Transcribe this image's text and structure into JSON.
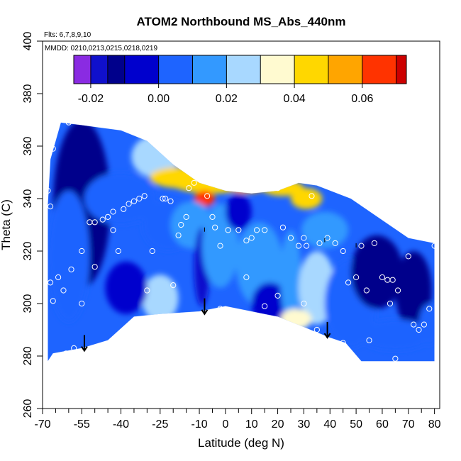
{
  "chart_data": {
    "type": "heatmap",
    "title": "ATOM2 Northbound MS_Abs_440nm",
    "subtitle_flights": "Flts: 6,7,8,9,10",
    "subtitle_dates": "MMDD: 0210,0213,0215,0218,0219",
    "xlabel": "Latitude (deg N)",
    "ylabel": "Theta (C)",
    "xlim": [
      -70,
      82
    ],
    "ylim": [
      260,
      400
    ],
    "x_ticks_major": [
      -70,
      -55,
      -40,
      -25,
      -10,
      0,
      10,
      20,
      30,
      40,
      50,
      60,
      70,
      80
    ],
    "x_tick_labels": [
      "-70",
      "-55",
      "-40",
      "-25",
      "-10",
      "0",
      "10",
      "20",
      "30",
      "40",
      "50",
      "60",
      "70",
      "80"
    ],
    "x_ticks_minor": [
      -65,
      -60,
      -50,
      -45,
      -35,
      -30,
      -20,
      -15,
      -5,
      5,
      15,
      25,
      35,
      45,
      55,
      65,
      75
    ],
    "y_ticks": [
      260,
      280,
      300,
      320,
      340,
      360,
      380,
      400
    ],
    "y_tick_labels": [
      "260",
      "280",
      "300",
      "320",
      "340",
      "360",
      "380",
      "400"
    ],
    "colorbar": {
      "range": [
        -0.025,
        0.073
      ],
      "tick_values": [
        -0.02,
        0.0,
        0.02,
        0.04,
        0.06
      ],
      "tick_labels": [
        "-0.02",
        "0.00",
        "0.02",
        "0.04",
        "0.06"
      ],
      "boundaries": [
        -0.025,
        -0.02,
        -0.015,
        -0.01,
        0.0,
        0.01,
        0.02,
        0.03,
        0.04,
        0.05,
        0.06,
        0.07,
        0.073
      ],
      "colors": [
        "#8a2be2",
        "#1010cc",
        "#00008b",
        "#0000cd",
        "#1e64ff",
        "#3399ff",
        "#a8d8ff",
        "#fffad0",
        "#ffd700",
        "#ffa500",
        "#ff3300",
        "#cc0000",
        "#a52a2a"
      ]
    },
    "boundary_bottom": [
      [
        -68,
        278
      ],
      [
        -66,
        281
      ],
      [
        -55,
        283
      ],
      [
        -45,
        286
      ],
      [
        -35,
        295
      ],
      [
        -25,
        296
      ],
      [
        -10,
        297
      ],
      [
        0,
        299
      ],
      [
        10,
        297
      ],
      [
        20,
        295
      ],
      [
        30,
        291
      ],
      [
        40,
        287
      ],
      [
        46,
        285
      ],
      [
        52,
        278
      ],
      [
        80,
        278
      ]
    ],
    "boundary_top": [
      [
        -68,
        338
      ],
      [
        -67,
        355
      ],
      [
        -63,
        369
      ],
      [
        -55,
        368
      ],
      [
        -40,
        366
      ],
      [
        -30,
        362
      ],
      [
        -20,
        353
      ],
      [
        -10,
        346
      ],
      [
        0,
        343
      ],
      [
        10,
        342
      ],
      [
        20,
        343
      ],
      [
        28,
        346
      ],
      [
        35,
        345
      ],
      [
        48,
        340
      ],
      [
        70,
        325
      ],
      [
        80,
        323
      ]
    ],
    "field_blobs": [
      {
        "x": -27,
        "y": 356,
        "rx": 9,
        "ry": 8,
        "v": 0.022
      },
      {
        "x": -17,
        "y": 348,
        "rx": 12,
        "ry": 4,
        "v": 0.045
      },
      {
        "x": -5,
        "y": 346,
        "rx": 16,
        "ry": 4,
        "v": 0.042
      },
      {
        "x": -8,
        "y": 340,
        "rx": 4,
        "ry": 3,
        "v": 0.068
      },
      {
        "x": 8,
        "y": 345,
        "rx": 8,
        "ry": 3,
        "v": 0.05
      },
      {
        "x": 22,
        "y": 344,
        "rx": 8,
        "ry": 3,
        "v": 0.04
      },
      {
        "x": 31,
        "y": 340,
        "rx": 6,
        "ry": 4,
        "v": 0.045
      },
      {
        "x": -55,
        "y": 338,
        "rx": 11,
        "ry": 32,
        "v": -0.012
      },
      {
        "x": -40,
        "y": 340,
        "rx": 14,
        "ry": 10,
        "v": 0.003
      },
      {
        "x": -60,
        "y": 318,
        "rx": 8,
        "ry": 25,
        "v": 0.006
      },
      {
        "x": -22,
        "y": 330,
        "rx": 10,
        "ry": 10,
        "v": 0.008
      },
      {
        "x": -25,
        "y": 302,
        "rx": 7,
        "ry": 9,
        "v": 0.025
      },
      {
        "x": -38,
        "y": 306,
        "rx": 8,
        "ry": 10,
        "v": -0.01
      },
      {
        "x": -13,
        "y": 330,
        "rx": 8,
        "ry": 9,
        "v": 0.013
      },
      {
        "x": -9,
        "y": 314,
        "rx": 3,
        "ry": 15,
        "v": -0.017
      },
      {
        "x": -2,
        "y": 322,
        "rx": 7,
        "ry": 16,
        "v": 0.014
      },
      {
        "x": 5,
        "y": 335,
        "rx": 5,
        "ry": 7,
        "v": -0.008
      },
      {
        "x": 13,
        "y": 315,
        "rx": 9,
        "ry": 16,
        "v": 0.01
      },
      {
        "x": 17,
        "y": 300,
        "rx": 7,
        "ry": 8,
        "v": -0.01
      },
      {
        "x": 25,
        "y": 310,
        "rx": 4,
        "ry": 18,
        "v": 0.016
      },
      {
        "x": 35,
        "y": 306,
        "rx": 7,
        "ry": 14,
        "v": 0.027
      },
      {
        "x": 27,
        "y": 294,
        "rx": 6,
        "ry": 4,
        "v": 0.032
      },
      {
        "x": 38,
        "y": 328,
        "rx": 9,
        "ry": 7,
        "v": 0.012
      },
      {
        "x": 48,
        "y": 300,
        "rx": 10,
        "ry": 17,
        "v": 0.008
      },
      {
        "x": 58,
        "y": 312,
        "rx": 10,
        "ry": 14,
        "v": -0.012
      },
      {
        "x": 72,
        "y": 305,
        "rx": 7,
        "ry": 15,
        "v": -0.015
      },
      {
        "x": 65,
        "y": 288,
        "rx": 14,
        "ry": 6,
        "v": 0.004
      },
      {
        "x": 78,
        "y": 292,
        "rx": 4,
        "ry": 8,
        "v": 0.008
      }
    ],
    "background_value": 0.0,
    "observation_points": [
      [
        -66,
        369
      ],
      [
        -68,
        343
      ],
      [
        -67,
        337
      ],
      [
        -66,
        359
      ],
      [
        -60,
        369
      ],
      [
        -67,
        308
      ],
      [
        -66,
        301
      ],
      [
        -64,
        310
      ],
      [
        -62,
        305
      ],
      [
        -59,
        313
      ],
      [
        -61,
        281
      ],
      [
        -58,
        283
      ],
      [
        -55,
        320
      ],
      [
        -50,
        314
      ],
      [
        -52,
        331
      ],
      [
        -50,
        331
      ],
      [
        -47,
        332
      ],
      [
        -45,
        333
      ],
      [
        -43,
        335
      ],
      [
        -43,
        328
      ],
      [
        -41,
        320
      ],
      [
        -39,
        336
      ],
      [
        -37,
        338
      ],
      [
        -35,
        339
      ],
      [
        -33,
        340
      ],
      [
        -31,
        341
      ],
      [
        -28,
        320
      ],
      [
        -24,
        340
      ],
      [
        -23,
        340
      ],
      [
        -21,
        339
      ],
      [
        -18,
        326
      ],
      [
        -17,
        330
      ],
      [
        -14,
        344
      ],
      [
        -12,
        346
      ],
      [
        -7,
        341
      ],
      [
        -4,
        329
      ],
      [
        -5,
        333
      ],
      [
        -2,
        322
      ],
      [
        1,
        328
      ],
      [
        2,
        344
      ],
      [
        5,
        328
      ],
      [
        8,
        324
      ],
      [
        10,
        325
      ],
      [
        12,
        328
      ],
      [
        13,
        344
      ],
      [
        15,
        328
      ],
      [
        18,
        344
      ],
      [
        20,
        344
      ],
      [
        22,
        329
      ],
      [
        25,
        325
      ],
      [
        28,
        322
      ],
      [
        30,
        325
      ],
      [
        31,
        322
      ],
      [
        33,
        341
      ],
      [
        36,
        323
      ],
      [
        39,
        325
      ],
      [
        42,
        323
      ],
      [
        45,
        320
      ],
      [
        50,
        310
      ],
      [
        52,
        322
      ],
      [
        54,
        305
      ],
      [
        57,
        323
      ],
      [
        60,
        310
      ],
      [
        62,
        309
      ],
      [
        64,
        309
      ],
      [
        66,
        305
      ],
      [
        63,
        300
      ],
      [
        70,
        318
      ],
      [
        72,
        292
      ],
      [
        74,
        290
      ],
      [
        76,
        292
      ],
      [
        78,
        298
      ],
      [
        80,
        322
      ],
      [
        -15,
        333
      ],
      [
        -2,
        298
      ],
      [
        15,
        299
      ],
      [
        35,
        290
      ],
      [
        45,
        285
      ],
      [
        55,
        286
      ],
      [
        65,
        279
      ],
      [
        47,
        308
      ],
      [
        30,
        300
      ],
      [
        20,
        303
      ],
      [
        8,
        310
      ],
      [
        -20,
        307
      ],
      [
        -30,
        305
      ],
      [
        -55,
        300
      ]
    ],
    "arrows": [
      {
        "x": -54,
        "y_start": 288,
        "y_end": 282
      },
      {
        "x": -8,
        "y_start": 302,
        "y_end": 296
      },
      {
        "x": 39,
        "y_start": 293,
        "y_end": 287
      }
    ],
    "colorbar_pointers": [
      {
        "x": -8,
        "y": 329
      },
      {
        "x": 38,
        "y": 325
      },
      {
        "x": 50,
        "y": 323
      }
    ]
  }
}
